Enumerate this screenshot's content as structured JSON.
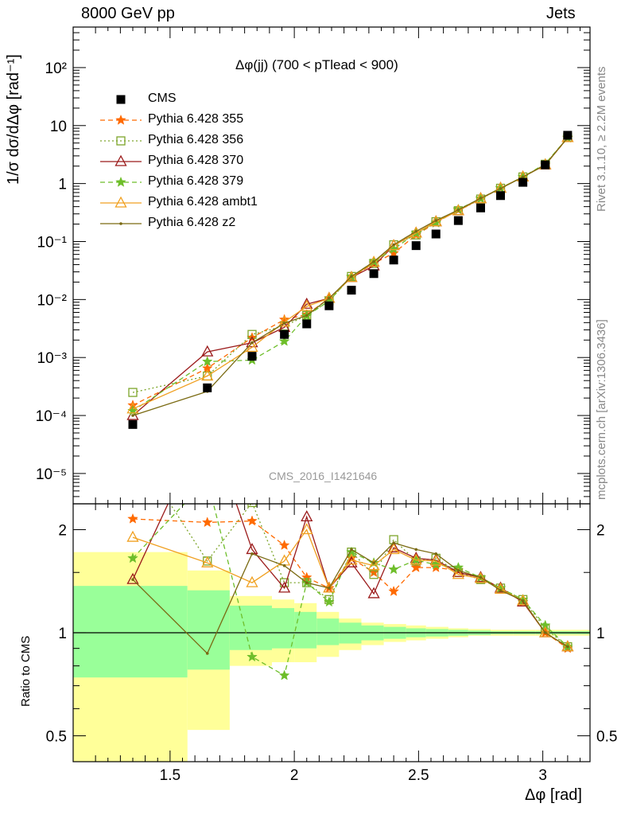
{
  "header": {
    "left": "8000 GeV pp",
    "right": "Jets"
  },
  "side_labels": {
    "rivet": "Rivet 3.1.10, ≥ 2.2M events",
    "mcplots": "mcplots.cern.ch [arXiv:1306.3436]"
  },
  "chart_data": {
    "type": "line",
    "title": "Δφ(jj) (700 < pTlead <  900)",
    "watermark": "CMS_2016_I1421646",
    "xlabel": "Δφ [rad]",
    "ylabel": "1/σ dσ/dΔφ [rad⁻¹]",
    "ratio_ylabel": "Ratio to CMS",
    "x_ticks": [
      "1.5",
      "2",
      "2.5",
      "3"
    ],
    "xlim": [
      1.11,
      3.19
    ],
    "ylim": [
      3e-06,
      500
    ],
    "y_scale": "log",
    "y_ticks": [
      "10⁻⁵",
      "10⁻⁴",
      "10⁻³",
      "10⁻²",
      "10⁻¹",
      "1",
      "10",
      "10²"
    ],
    "ratio_ylim": [
      0.42,
      2.38
    ],
    "ratio_y_ticks": [
      "0.5",
      "1",
      "2"
    ],
    "legend_position": "top-left",
    "x": [
      1.35,
      1.65,
      1.83,
      1.96,
      2.05,
      2.14,
      2.23,
      2.32,
      2.4,
      2.49,
      2.57,
      2.66,
      2.75,
      2.83,
      2.92,
      3.01,
      3.1
    ],
    "data": {
      "name": "CMS",
      "color": "#000000",
      "values": [
        7e-05,
        0.0003,
        0.00105,
        0.0025,
        0.0038,
        0.0078,
        0.0145,
        0.028,
        0.048,
        0.085,
        0.135,
        0.23,
        0.38,
        0.62,
        1.05,
        2.1,
        6.8
      ]
    },
    "series": [
      {
        "name": "Pythia 6.428 355",
        "color": "#ff6a00",
        "marker": "star",
        "dash": "6,4",
        "values": [
          0.00015,
          0.00065,
          0.0022,
          0.0045,
          0.0055,
          0.0105,
          0.024,
          0.042,
          0.063,
          0.13,
          0.21,
          0.35,
          0.55,
          0.83,
          1.3,
          2.1,
          6.1
        ]
      },
      {
        "name": "Pythia 6.428 356",
        "color": "#7da52a",
        "marker": "square",
        "dash": "2,3",
        "values": [
          0.00025,
          0.00048,
          0.0025,
          0.0035,
          0.0053,
          0.0095,
          0.025,
          0.042,
          0.088,
          0.13,
          0.22,
          0.34,
          0.54,
          0.83,
          1.3,
          2.15,
          6.2
        ]
      },
      {
        "name": "Pythia 6.428 370",
        "color": "#9b1b1b",
        "marker": "triangle",
        "dash": "",
        "values": [
          0.0001,
          0.00125,
          0.0018,
          0.0033,
          0.0083,
          0.0105,
          0.024,
          0.038,
          0.085,
          0.14,
          0.22,
          0.34,
          0.55,
          0.83,
          1.3,
          2.1,
          6.2
        ]
      },
      {
        "name": "Pythia 6.428 379",
        "color": "#6ebe2a",
        "marker": "star",
        "dash": "6,4",
        "values": [
          0.00012,
          0.00085,
          0.0009,
          0.0019,
          0.0052,
          0.0095,
          0.025,
          0.045,
          0.074,
          0.14,
          0.21,
          0.36,
          0.55,
          0.84,
          1.3,
          2.2,
          6.2
        ]
      },
      {
        "name": "Pythia 6.428 ambt1",
        "color": "#f0a020",
        "marker": "triangle",
        "dash": "",
        "values": [
          0.00013,
          0.00048,
          0.0015,
          0.0041,
          0.0076,
          0.0105,
          0.024,
          0.044,
          0.085,
          0.14,
          0.22,
          0.34,
          0.55,
          0.83,
          1.3,
          2.1,
          6.2
        ]
      },
      {
        "name": "Pythia 6.428 z2",
        "color": "#7a6a12",
        "marker": "dot",
        "dash": "",
        "values": [
          0.0001,
          0.00026,
          0.0018,
          0.0039,
          0.0053,
          0.0105,
          0.025,
          0.045,
          0.088,
          0.15,
          0.23,
          0.35,
          0.56,
          0.82,
          1.3,
          2.1,
          6.2
        ]
      }
    ],
    "ratios": [
      {
        "name": "Pythia 6.428 355",
        "values": [
          2.15,
          2.1,
          2.12,
          1.8,
          1.45,
          1.35,
          1.65,
          1.5,
          1.32,
          1.55,
          1.55,
          1.52,
          1.45,
          1.35,
          1.23,
          1.0,
          0.9
        ]
      },
      {
        "name": "Pythia 6.428 356",
        "values": [
          3.5,
          1.62,
          2.4,
          1.4,
          1.4,
          1.25,
          1.72,
          1.48,
          1.87,
          1.62,
          1.65,
          1.5,
          1.43,
          1.35,
          1.25,
          1.03,
          0.91
        ]
      },
      {
        "name": "Pythia 6.428 370",
        "values": [
          1.43,
          4.2,
          1.75,
          1.35,
          2.18,
          1.35,
          1.6,
          1.3,
          1.77,
          1.65,
          1.63,
          1.5,
          1.45,
          1.35,
          1.23,
          1.0,
          0.91
        ]
      },
      {
        "name": "Pythia 6.428 379",
        "values": [
          1.65,
          2.8,
          0.85,
          0.75,
          1.4,
          1.23,
          1.72,
          1.6,
          1.53,
          1.63,
          1.58,
          1.55,
          1.45,
          1.35,
          1.25,
          1.05,
          0.91
        ]
      },
      {
        "name": "Pythia 6.428 ambt1",
        "values": [
          1.9,
          1.6,
          1.4,
          1.62,
          2.0,
          1.35,
          1.63,
          1.57,
          1.75,
          1.63,
          1.62,
          1.48,
          1.44,
          1.34,
          1.24,
          1.0,
          0.91
        ]
      },
      {
        "name": "Pythia 6.428 z2",
        "values": [
          1.43,
          0.87,
          1.7,
          1.57,
          1.4,
          1.35,
          1.75,
          1.6,
          1.83,
          1.75,
          1.7,
          1.52,
          1.45,
          1.33,
          1.24,
          1.0,
          0.91
        ]
      }
    ],
    "uncertainty_bands": {
      "x_edges": [
        1.11,
        1.57,
        1.74,
        1.91,
        2.0,
        2.09,
        2.18,
        2.27,
        2.36,
        2.45,
        2.53,
        2.62,
        2.7,
        2.79,
        2.88,
        2.97,
        3.05,
        3.19
      ],
      "stat_low": [
        0.74,
        0.78,
        0.89,
        0.9,
        0.9,
        0.92,
        0.93,
        0.95,
        0.96,
        0.97,
        0.975,
        0.98,
        0.985,
        0.99,
        0.99,
        0.99,
        0.99
      ],
      "stat_high": [
        1.37,
        1.33,
        1.2,
        1.18,
        1.15,
        1.1,
        1.07,
        1.05,
        1.04,
        1.03,
        1.025,
        1.02,
        1.015,
        1.01,
        1.01,
        1.01,
        1.01
      ],
      "total_low": [
        0.42,
        0.52,
        0.8,
        0.82,
        0.82,
        0.85,
        0.89,
        0.92,
        0.94,
        0.95,
        0.96,
        0.97,
        0.98,
        0.98,
        0.98,
        0.98,
        0.98
      ],
      "total_high": [
        1.72,
        1.52,
        1.28,
        1.25,
        1.22,
        1.15,
        1.1,
        1.07,
        1.06,
        1.05,
        1.04,
        1.03,
        1.025,
        1.02,
        1.02,
        1.02,
        1.02
      ]
    }
  }
}
